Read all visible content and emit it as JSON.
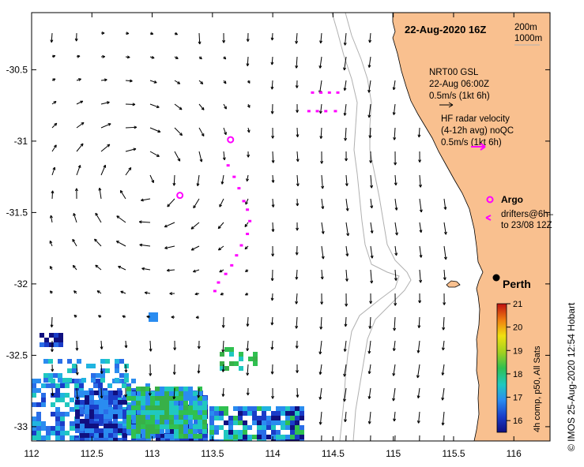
{
  "map": {
    "title": "22-Aug-2020 16Z",
    "depth_contours": [
      "200m",
      "1000m"
    ],
    "place_label": "Perth",
    "x_ticks": [
      "112",
      "112.5",
      "113",
      "113.5",
      "114",
      "114.5",
      "115",
      "115.5",
      "116"
    ],
    "y_ticks": [
      "-30.5",
      "-31",
      "-31.5",
      "-32",
      "-32.5",
      "-33"
    ],
    "lon_range": [
      112,
      116.3
    ],
    "lat_range": [
      -33.1,
      -30.1
    ],
    "legend": {
      "model": {
        "line1": "NRT00 GSL",
        "line2": "22-Aug 06:00Z",
        "line3": "0.5m/s (1kt 6h)"
      },
      "radar": {
        "line1": "HF radar velocity",
        "line2": "(4-12h avg) noQC",
        "line3": "0.5m/s (1kt 6h)"
      },
      "argo_label": "Argo",
      "drifters_line1": "drifters@6h–",
      "drifters_line2": "to 23/08 12Z"
    },
    "colorbar": {
      "ticks": [
        "21",
        "20",
        "19",
        "18",
        "17",
        "16"
      ],
      "label": "4h comp, p50, All Sats",
      "range": [
        15.5,
        21
      ]
    },
    "credit": "© IMOS 25-Aug-2020 12:54 Hobart",
    "argo_positions": [
      [
        113.65,
        -30.99
      ],
      [
        113.23,
        -31.38
      ]
    ],
    "drifter_tracks": [
      [
        [
          113.63,
          -31.17
        ],
        [
          113.68,
          -31.25
        ],
        [
          113.72,
          -31.33
        ],
        [
          113.76,
          -31.42
        ],
        [
          113.79,
          -31.48
        ],
        [
          113.81,
          -31.56
        ],
        [
          113.79,
          -31.65
        ],
        [
          113.74,
          -31.73
        ],
        [
          113.7,
          -31.8
        ],
        [
          113.66,
          -31.87
        ],
        [
          113.61,
          -31.93
        ],
        [
          113.55,
          -31.99
        ],
        [
          113.52,
          -32.05
        ]
      ],
      [
        [
          114.33,
          -30.66
        ],
        [
          114.4,
          -30.66
        ],
        [
          114.47,
          -30.66
        ],
        [
          114.54,
          -30.66
        ]
      ],
      [
        [
          114.3,
          -30.79
        ],
        [
          114.37,
          -30.79
        ],
        [
          114.44,
          -30.79
        ],
        [
          114.52,
          -30.79
        ]
      ]
    ],
    "colors": {
      "land": "#f9c08f",
      "argo": "#ff00ff",
      "drifter": "#ff00ff",
      "contour": "#b0b0b0",
      "perth_dot": "#000000"
    }
  }
}
